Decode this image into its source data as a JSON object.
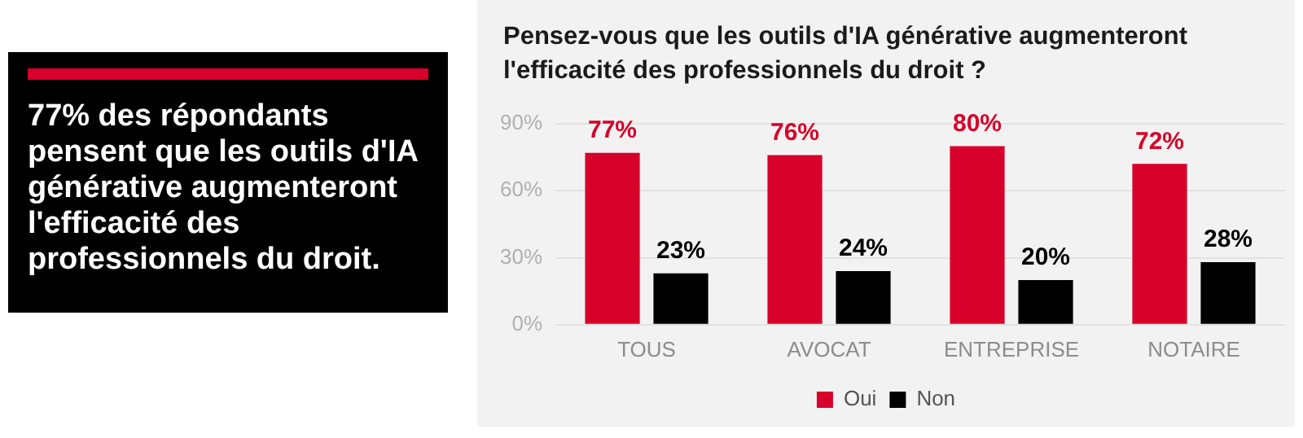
{
  "chart_data": {
    "type": "bar",
    "title": "Pensez-vous que les outils d'IA générative augmenteront l'efficacité  des professionnels du droit ?",
    "annotations": [
      "77% des répondants pensent que les outils d'IA générative augmenteront l'efficacité des professionnels du droit."
    ],
    "categories": [
      "TOUS",
      "AVOCAT",
      "ENTREPRISE",
      "NOTAIRE"
    ],
    "series": [
      {
        "name": "Oui",
        "color": "#d7002a",
        "values": [
          77,
          76,
          80,
          72
        ],
        "value_labels": [
          "77%",
          "76%",
          "80%",
          "72%"
        ]
      },
      {
        "name": "Non",
        "color": "#000000",
        "values": [
          23,
          24,
          20,
          28
        ],
        "value_labels": [
          "23%",
          "24%",
          "20%",
          "28%"
        ]
      }
    ],
    "ylim": [
      0,
      90
    ],
    "yticks": [
      {
        "value": 0,
        "label": "0%"
      },
      {
        "value": 30,
        "label": "30%"
      },
      {
        "value": 60,
        "label": "60%"
      },
      {
        "value": 90,
        "label": "90%"
      }
    ],
    "grid": "y",
    "legend": "bottom"
  }
}
